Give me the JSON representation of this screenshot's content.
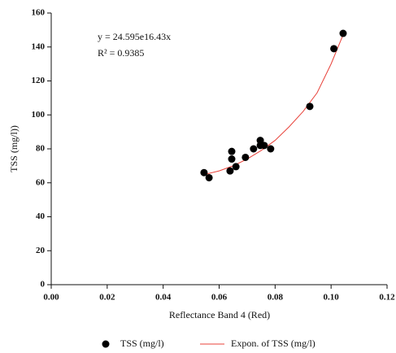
{
  "chart_data": {
    "type": "scatter",
    "x_label": "Reflectance Band 4 (Red)",
    "y_label": "TSS (mg/l))",
    "annotations": [
      "y = 24.595e16.43x",
      "R² = 0.9385"
    ],
    "series": [
      {
        "name": "TSS (mg/l)",
        "type": "scatter",
        "color": "#000000",
        "x": [
          0.0546,
          0.0564,
          0.0639,
          0.0645,
          0.0645,
          0.066,
          0.0694,
          0.0723,
          0.0747,
          0.0747,
          0.0761,
          0.0784,
          0.0924,
          0.101,
          0.1043
        ],
        "values": [
          66,
          63,
          67,
          74,
          78.5,
          69.5,
          75,
          80,
          85,
          82,
          82,
          80,
          105,
          139,
          148
        ]
      },
      {
        "name": "Expon. of TSS (mg/l)",
        "type": "line",
        "color": "#e8423a",
        "x": [
          0.055,
          0.06,
          0.065,
          0.07,
          0.075,
          0.08,
          0.085,
          0.09,
          0.095,
          0.1,
          0.1045
        ],
        "values": [
          65,
          67,
          70,
          74,
          79,
          85,
          93,
          102,
          113,
          130,
          148
        ]
      }
    ],
    "xlim": [
      0,
      0.12
    ],
    "xticks": [
      {
        "value": 0,
        "label": "0.00"
      },
      {
        "value": 0.02,
        "label": "0.02"
      },
      {
        "value": 0.04,
        "label": "0.04"
      },
      {
        "value": 0.06,
        "label": "0.06"
      },
      {
        "value": 0.08,
        "label": "0.08"
      },
      {
        "value": 0.1,
        "label": "0.10"
      },
      {
        "value": 0.12,
        "label": "0.12"
      }
    ],
    "ylim": [
      0,
      160
    ],
    "yticks": [
      0,
      20,
      40,
      60,
      80,
      100,
      120,
      140,
      160
    ],
    "grid": false
  }
}
